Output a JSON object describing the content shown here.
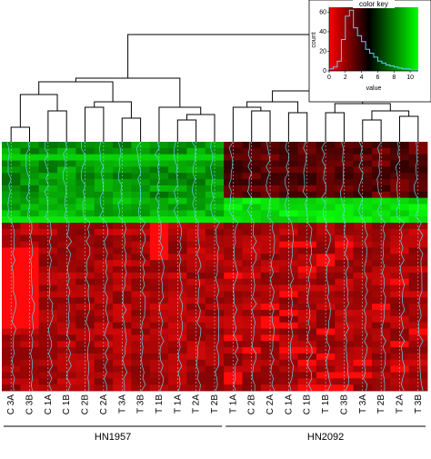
{
  "chart_data": {
    "type": "heatmap",
    "columns": [
      "C 3A",
      "C 3B",
      "C 1A",
      "C 1B",
      "C 2B",
      "C 2A",
      "T 3A",
      "T 3B",
      "T 1B",
      "T 1A",
      "T 2A",
      "T 2B",
      "T 1A",
      "C 2B",
      "C 2A",
      "C 1A",
      "C 1B",
      "T 1B",
      "C 3B",
      "T 3A",
      "T 2B",
      "T 2A",
      "T 3B"
    ],
    "groups": [
      {
        "label": "HN1957",
        "start": 0,
        "end": 11
      },
      {
        "label": "HN2092",
        "start": 12,
        "end": 22
      }
    ],
    "dendrogram": "hierarchical clustering of the 23 columns; top split separates HN1957 from HN2092",
    "color_key": {
      "title": "color key",
      "xlabel": "value",
      "ylabel": "count",
      "x_ticks": [
        "0",
        "2",
        "4",
        "6",
        "8",
        "10"
      ],
      "y_ticks": [
        "0",
        "20",
        "40",
        "60"
      ],
      "x_range": [
        0,
        11
      ],
      "y_range": [
        0,
        65
      ],
      "colors": [
        "#ff0000",
        "#000000",
        "#00ff00"
      ]
    },
    "row_bands": [
      {
        "rows": "1-9",
        "HN1957": "dark green to green",
        "HN2092": "dark red / black"
      },
      {
        "rows": "10-13",
        "HN1957": "green",
        "HN2092": "bright green"
      },
      {
        "rows": "14-40",
        "HN1957": "red, brightest in C 3A, C 3B and T 1B",
        "HN2092": "red with scattered bright cells"
      }
    ]
  }
}
